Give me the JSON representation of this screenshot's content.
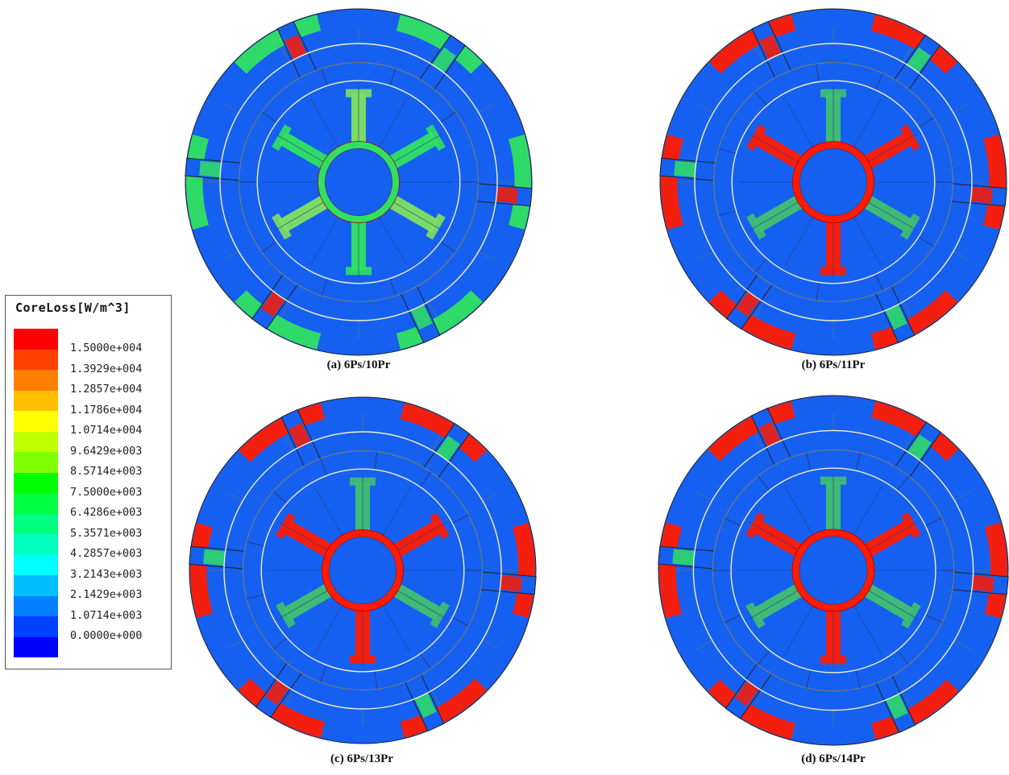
{
  "legend": {
    "title": "CoreLoss[W/m^3]",
    "levels": [
      {
        "label": "1.5000e+004",
        "color": "#ff0000"
      },
      {
        "label": "1.3929e+004",
        "color": "#ff4000"
      },
      {
        "label": "1.2857e+004",
        "color": "#ff8000"
      },
      {
        "label": "1.1786e+004",
        "color": "#ffbf00"
      },
      {
        "label": "1.0714e+004",
        "color": "#ffff00"
      },
      {
        "label": "9.6429e+003",
        "color": "#bfff00"
      },
      {
        "label": "8.5714e+003",
        "color": "#80ff00"
      },
      {
        "label": "7.5000e+003",
        "color": "#00ff00"
      },
      {
        "label": "6.4286e+003",
        "color": "#00ff40"
      },
      {
        "label": "5.3571e+003",
        "color": "#00ff80"
      },
      {
        "label": "4.2857e+003",
        "color": "#00ffbf"
      },
      {
        "label": "3.2143e+003",
        "color": "#00ffff"
      },
      {
        "label": "2.1429e+003",
        "color": "#00bfff"
      },
      {
        "label": "1.0714e+003",
        "color": "#0080ff"
      },
      {
        "label": "0.0000e+000",
        "color": "#0040ff"
      },
      {
        "label": "",
        "color": "#0000ff"
      }
    ]
  },
  "panels": [
    {
      "caption": "(a) 6Ps/10Pr",
      "rotor_poles": 10,
      "arcs": "green"
    },
    {
      "caption": "(b) 6Ps/11Pr",
      "rotor_poles": 11,
      "arcs": "red"
    },
    {
      "caption": "(c) 6Ps/13Pr",
      "rotor_poles": 13,
      "arcs": "red"
    },
    {
      "caption": "(d) 6Ps/14Pr",
      "rotor_poles": 14,
      "arcs": "red"
    }
  ],
  "colors": {
    "low": "#1560f0",
    "high": "#ff1a00",
    "mid": "#30e060",
    "edge": "#202020",
    "gap_line": "#f0f0c8"
  }
}
